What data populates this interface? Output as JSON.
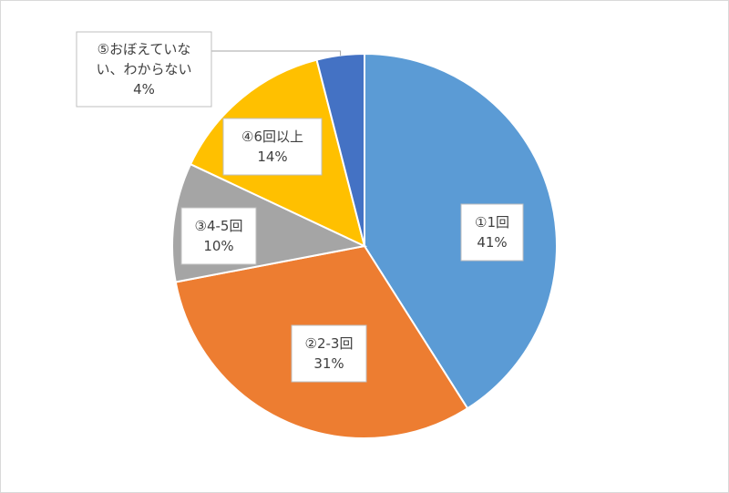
{
  "chart_data": {
    "type": "pie",
    "title": "",
    "categories": [
      "①1回",
      "②2-3回",
      "③4-5回",
      "④6回以上",
      "⑤おぼえていない、わからない"
    ],
    "values": [
      41,
      31,
      10,
      14,
      4
    ],
    "value_labels": [
      "41%",
      "31%",
      "10%",
      "14%",
      "4%"
    ],
    "colors": [
      "#5b9bd5",
      "#ed7d31",
      "#a5a5a5",
      "#ffc000",
      "#4472c4"
    ],
    "start_angle_deg": 0,
    "direction": "clockwise",
    "legend": "none",
    "data_label_lines": [
      [
        "①1回",
        "41%"
      ],
      [
        "②2-3回",
        "31%"
      ],
      [
        "③4-5回",
        "10%"
      ],
      [
        "④6回以上",
        "14%"
      ],
      [
        "⑤おぼえていな",
        "い、わからない",
        "4%"
      ]
    ]
  }
}
